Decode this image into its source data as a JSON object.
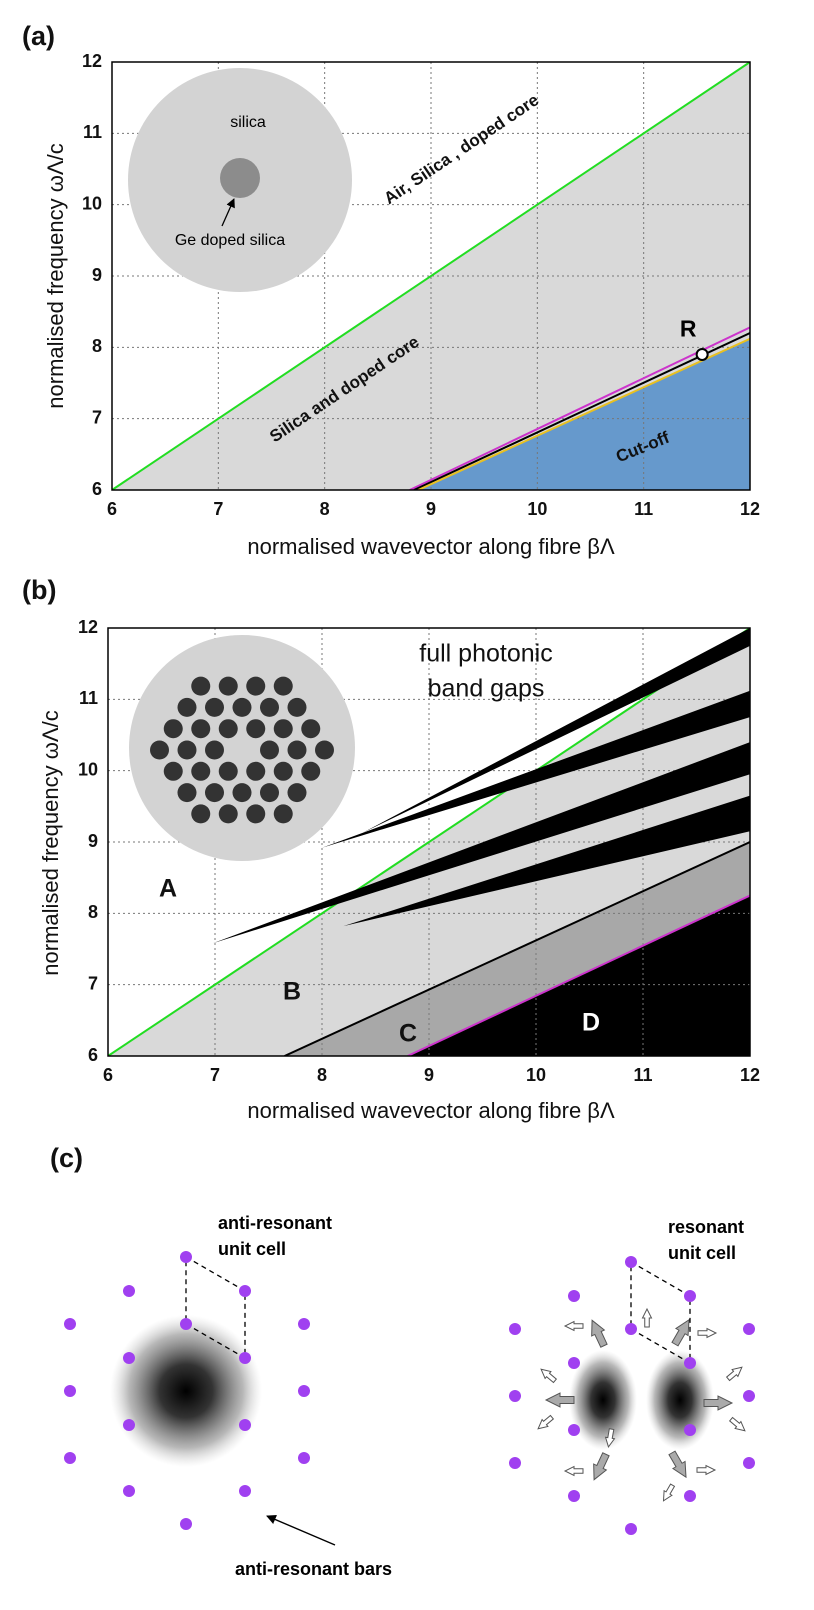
{
  "chart_data": [
    {
      "type": "line",
      "panel_label": "(a)",
      "xlabel": "normalised wavevector along fibre βΛ",
      "ylabel": "normalised frequency ωΛ/c",
      "xlim": [
        6,
        12
      ],
      "ylim": [
        6,
        12
      ],
      "xticks": [
        6,
        7,
        8,
        9,
        10,
        11,
        12
      ],
      "yticks": [
        6,
        7,
        8,
        9,
        10,
        11,
        12
      ],
      "grid": true,
      "series": [
        {
          "color": "#22dd22",
          "fill": "#d9d9d9",
          "x": [
            6,
            12
          ],
          "values": [
            6,
            12
          ]
        },
        {
          "color": "#cc33cc",
          "x": [
            8.8,
            12
          ],
          "values": [
            6,
            8.28
          ]
        },
        {
          "color": "#000000",
          "x": [
            8.84,
            12
          ],
          "values": [
            6,
            8.2
          ]
        },
        {
          "color": "#e8c020",
          "fill": "#6699cc",
          "x": [
            8.88,
            12
          ],
          "values": [
            6,
            8.12
          ]
        }
      ],
      "points": [
        {
          "x": 11.55,
          "y": 7.9,
          "label": "R"
        }
      ],
      "annotations": [
        "Air, Silica , doped core",
        "Silica and doped core",
        "Cut-off"
      ],
      "inset": {
        "texts": [
          "silica",
          "Ge doped silica"
        ]
      }
    },
    {
      "type": "line",
      "panel_label": "(b)",
      "xlabel": "normalised wavevector along fibre βΛ",
      "ylabel": "normalised frequency ωΛ/c",
      "xlim": [
        6,
        12
      ],
      "ylim": [
        6,
        12
      ],
      "xticks": [
        6,
        7,
        8,
        9,
        10,
        11,
        12
      ],
      "yticks": [
        6,
        7,
        8,
        9,
        10,
        11,
        12
      ],
      "grid": true,
      "series": [
        {
          "color": "#22dd22",
          "fill": "#d9d9d9",
          "x": [
            6,
            12
          ],
          "values": [
            6,
            12
          ]
        },
        {
          "color": "#000000",
          "fill": "#a8a8a8",
          "x": [
            7.65,
            12
          ],
          "values": [
            6,
            9.0
          ]
        },
        {
          "color": "#cc33cc",
          "fill": "#000000",
          "x": [
            8.8,
            12
          ],
          "values": [
            6,
            8.25
          ]
        }
      ],
      "bands": [
        {
          "x": [
            8.38,
            12
          ],
          "upper": [
            9.13,
            12.0
          ],
          "lower": [
            9.13,
            11.75
          ]
        },
        {
          "x": [
            8.0,
            12
          ],
          "upper": [
            8.92,
            11.12
          ],
          "lower": [
            8.92,
            10.75
          ]
        },
        {
          "x": [
            6.98,
            12
          ],
          "upper": [
            7.58,
            10.4
          ],
          "lower": [
            7.58,
            9.95
          ]
        },
        {
          "x": [
            8.2,
            12
          ],
          "upper": [
            7.82,
            9.65
          ],
          "lower": [
            7.82,
            9.15
          ]
        }
      ],
      "annotations": [
        "full photonic",
        "band gaps",
        "A",
        "B",
        "C",
        "D"
      ]
    }
  ],
  "panel_c": {
    "label": "(c)",
    "left": {
      "title": [
        "anti-resonant",
        "unit cell"
      ],
      "note": "anti-resonant bars"
    },
    "right": {
      "title": [
        "resonant",
        "unit cell"
      ]
    }
  }
}
